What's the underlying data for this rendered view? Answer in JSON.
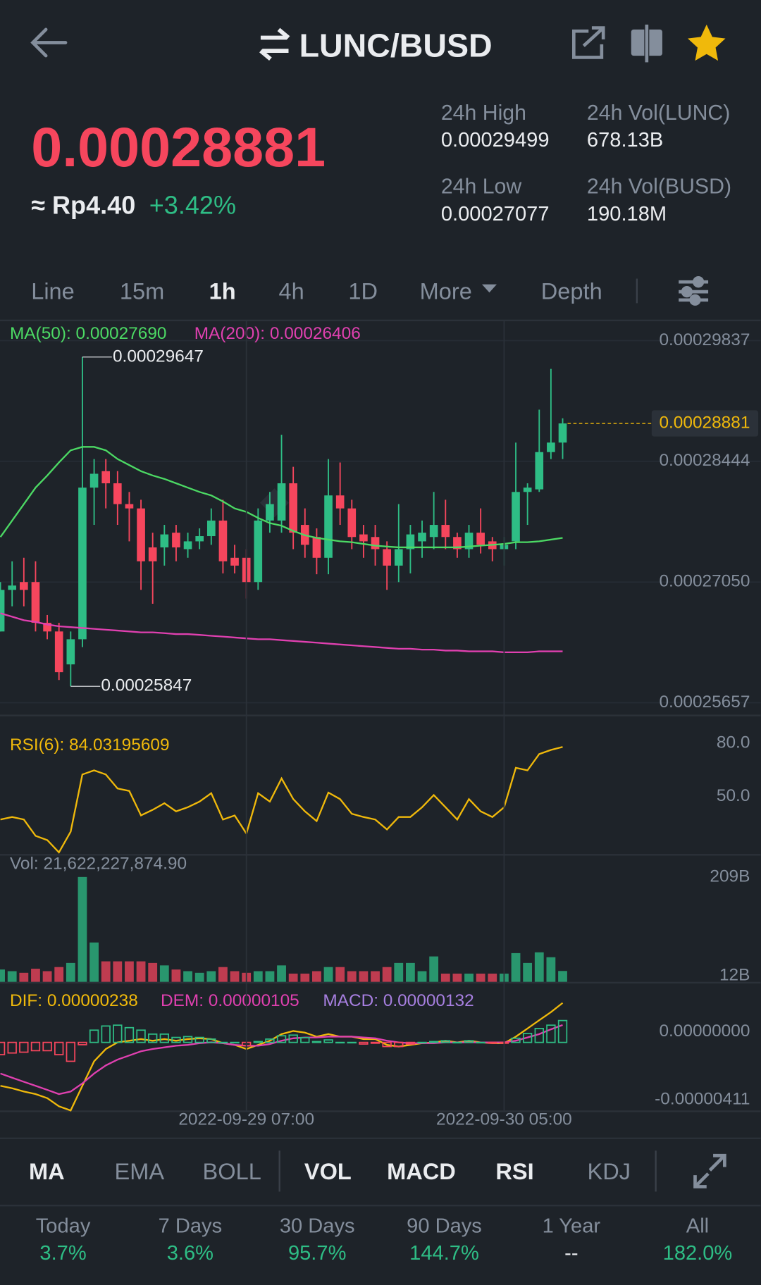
{
  "header": {
    "title": "LUNC/BUSD"
  },
  "price": {
    "last": "0.00028881",
    "fiat": "≈ Rp4.40",
    "change": "+3.42%"
  },
  "stats": [
    {
      "label": "24h High",
      "value": "0.00029499"
    },
    {
      "label": "24h Vol(LUNC)",
      "value": "678.13B"
    },
    {
      "label": "24h Low",
      "value": "0.00027077"
    },
    {
      "label": "24h Vol(BUSD)",
      "value": "190.18M"
    }
  ],
  "intervals": [
    "Line",
    "15m",
    "1h",
    "4h",
    "1D",
    "More",
    "Depth"
  ],
  "indicators": [
    "MA",
    "EMA",
    "BOLL",
    "VOL",
    "MACD",
    "RSI",
    "KDJ"
  ],
  "performance": [
    {
      "label": "Today",
      "value": "3.7%"
    },
    {
      "label": "7 Days",
      "value": "3.6%"
    },
    {
      "label": "30 Days",
      "value": "95.7%"
    },
    {
      "label": "90 Days",
      "value": "144.7%"
    },
    {
      "label": "1 Year",
      "value": "--"
    },
    {
      "label": "All",
      "value": "182.0%"
    }
  ],
  "chart_data": [
    {
      "type": "candlestick",
      "up_color": "#2ebd85",
      "down_color": "#f6465d",
      "grid": true,
      "ylim": [
        0.0002552,
        0.0003006
      ],
      "yticks": [
        0.00029837,
        0.00028444,
        {
          "value": 0.0002705,
          "label": "0.00027050"
        },
        0.00025657
      ],
      "open": [
        0.0002648,
        0.0002696,
        0.0002705,
        0.0002705,
        0.0002658,
        0.0002648,
        0.000261,
        0.0002639,
        0.0002814,
        0.0002833,
        0.0002819,
        0.0002795,
        0.000279,
        0.0002745,
        0.0002745,
        0.0002762,
        0.0002743,
        0.0002752,
        0.0002758,
        0.0002776,
        0.0002733,
        0.0002733,
        0.0002705,
        0.0002776,
        0.0002776,
        0.0002819,
        0.0002771,
        0.0002757,
        0.0002733,
        0.0002805,
        0.000279,
        0.000276,
        0.0002757,
        0.0002743,
        0.0002724,
        0.0002743,
        0.0002752,
        0.0002757,
        0.0002771,
        0.0002757,
        0.0002743,
        0.0002762,
        0.0002752,
        0.0002743,
        0.0002752,
        0.0002809,
        0.0002812,
        0.0002855,
        0.0002866
      ],
      "high": [
        0.0002705,
        0.0002729,
        0.0002733,
        0.0002729,
        0.0002667,
        0.0002658,
        0.0002648,
        0.00029647,
        0.0002847,
        0.0002847,
        0.0002833,
        0.0002809,
        0.00028,
        0.0002762,
        0.0002771,
        0.0002771,
        0.0002762,
        0.0002767,
        0.000279,
        0.00028,
        0.0002748,
        0.0002743,
        0.000279,
        0.0002809,
        0.0002875,
        0.0002838,
        0.000279,
        0.0002767,
        0.0002847,
        0.0002843,
        0.00028,
        0.0002771,
        0.0002771,
        0.0002752,
        0.0002795,
        0.0002771,
        0.0002776,
        0.0002809,
        0.00028,
        0.0002762,
        0.0002771,
        0.000279,
        0.0002757,
        0.0002757,
        0.0002866,
        0.0002819,
        0.0002904,
        0.0002951,
        0.0002894
      ],
      "low": [
        0.0002648,
        0.0002677,
        0.0002677,
        0.0002648,
        0.0002639,
        0.0002592,
        0.00025847,
        0.000263,
        0.0002771,
        0.000279,
        0.0002771,
        0.0002752,
        0.0002696,
        0.000268,
        0.0002724,
        0.0002729,
        0.0002733,
        0.0002743,
        0.0002748,
        0.0002715,
        0.0002715,
        0.0002686,
        0.0002696,
        0.0002762,
        0.0002762,
        0.0002743,
        0.0002733,
        0.0002714,
        0.0002714,
        0.0002771,
        0.0002743,
        0.0002733,
        0.0002724,
        0.0002696,
        0.0002705,
        0.0002715,
        0.0002733,
        0.0002743,
        0.0002743,
        0.0002733,
        0.0002733,
        0.0002738,
        0.0002729,
        0.0002724,
        0.0002743,
        0.0002771,
        0.0002809,
        0.0002847,
        0.0002847
      ],
      "close": [
        0.0002696,
        0.0002701,
        0.0002696,
        0.0002658,
        0.0002648,
        0.0002601,
        0.0002639,
        0.0002814,
        0.000283,
        0.0002819,
        0.0002795,
        0.000279,
        0.0002729,
        0.0002729,
        0.000276,
        0.0002745,
        0.0002752,
        0.0002758,
        0.0002776,
        0.0002729,
        0.0002724,
        0.0002705,
        0.0002776,
        0.0002795,
        0.0002819,
        0.0002762,
        0.0002748,
        0.0002733,
        0.0002805,
        0.000279,
        0.0002757,
        0.0002752,
        0.0002743,
        0.0002724,
        0.0002743,
        0.000276,
        0.0002762,
        0.0002771,
        0.0002757,
        0.0002743,
        0.0002762,
        0.0002748,
        0.0002743,
        0.0002748,
        0.0002809,
        0.0002814,
        0.0002855,
        0.0002866,
        0.00028881
      ],
      "series": [
        {
          "name": "MA(50): 0.00027690",
          "color": "#4cd964",
          "values": [
            0.0002757,
            0.0002776,
            0.0002795,
            0.0002814,
            0.0002828,
            0.0002843,
            0.0002857,
            0.0002861,
            0.0002861,
            0.0002857,
            0.0002847,
            0.000284,
            0.0002833,
            0.0002828,
            0.0002824,
            0.0002819,
            0.0002814,
            0.0002809,
            0.0002805,
            0.0002798,
            0.000279,
            0.0002786,
            0.0002779,
            0.0002773,
            0.000277,
            0.0002764,
            0.0002759,
            0.0002756,
            0.0002754,
            0.0002752,
            0.0002751,
            0.0002749,
            0.0002747,
            0.0002746,
            0.0002745,
            0.0002745,
            0.0002745,
            0.0002745,
            0.0002745,
            0.0002745,
            0.0002746,
            0.0002747,
            0.0002748,
            0.0002749,
            0.0002751,
            0.0002751,
            0.0002752,
            0.0002754,
            0.0002756
          ]
        },
        {
          "name": "MA(200): 0.00026406",
          "color": "#e040b0",
          "values": [
            0.0002669,
            0.0002665,
            0.0002661,
            0.0002659,
            0.0002656,
            0.0002654,
            0.0002653,
            0.0002652,
            0.0002651,
            0.000265,
            0.0002649,
            0.0002648,
            0.0002647,
            0.0002647,
            0.0002646,
            0.0002645,
            0.0002645,
            0.0002644,
            0.0002643,
            0.0002642,
            0.0002641,
            0.000264,
            0.0002639,
            0.0002639,
            0.0002638,
            0.0002637,
            0.0002636,
            0.0002635,
            0.0002634,
            0.0002633,
            0.0002632,
            0.0002631,
            0.000263,
            0.0002629,
            0.0002628,
            0.0002628,
            0.0002627,
            0.0002627,
            0.0002626,
            0.0002626,
            0.0002625,
            0.0002625,
            0.0002625,
            0.0002624,
            0.0002624,
            0.0002624,
            0.0002625,
            0.0002625,
            0.0002625
          ]
        }
      ],
      "max_label": 0.00029647,
      "min_label": 0.00025847,
      "last_price": 0.00028881,
      "last_color": "#f0b90b"
    },
    {
      "type": "line",
      "ylim": [
        23.7,
        100.8
      ],
      "yticks": [
        {
          "value": 80,
          "label": "80.0"
        },
        {
          "value": 50,
          "label": "50.0"
        }
      ],
      "series": [
        {
          "name": "RSI(6): 84.03195609",
          "color": "#f0b90b",
          "values": [
            43.1,
            44.5,
            43.1,
            33.9,
            31.5,
            24.6,
            36.2,
            68.5,
            70.8,
            68.5,
            60.6,
            59.2,
            45.4,
            48.6,
            52.3,
            47.7,
            50,
            53.2,
            57.9,
            43.1,
            45.4,
            35.2,
            57.9,
            53.2,
            66.2,
            54.6,
            47.7,
            42.2,
            58.3,
            54.6,
            46.3,
            44.5,
            43.1,
            37.5,
            44.5,
            44.5,
            50,
            56.9,
            50,
            43.1,
            54.6,
            47.7,
            44.5,
            50,
            72.2,
            70.8,
            80,
            82.3,
            84.0
          ]
        }
      ]
    },
    {
      "type": "bar",
      "title": "Vol: 21,622,227,874.90",
      "ylim": [
        0,
        250
      ],
      "yticks": [
        {
          "value": 209,
          "label": "209B"
        },
        {
          "value": 12,
          "label": "12B"
        }
      ],
      "values": [
        24.5,
        21.2,
        18,
        26.1,
        21.2,
        29.4,
        37.6,
        209,
        78.4,
        40.8,
        40.8,
        40.8,
        40.8,
        37.6,
        32.7,
        24.5,
        21.2,
        18,
        21.2,
        29.4,
        21.2,
        18,
        21.2,
        21.2,
        32.7,
        16.3,
        16.3,
        21.2,
        29.4,
        29.4,
        21.2,
        21.2,
        21.2,
        29.4,
        37.6,
        37.6,
        21.2,
        50.6,
        16.3,
        16.3,
        16.3,
        16.3,
        16.3,
        16.3,
        57.2,
        37.6,
        58.8,
        49,
        21.6
      ]
    },
    {
      "type": "macd",
      "ylim": [
        -4.21e-06,
        3.56e-06
      ],
      "yticks": [
        {
          "value": 0,
          "label": "0.00000000"
        },
        -4.11e-06
      ],
      "categories": [
        null,
        null,
        null,
        null,
        null,
        null,
        null,
        null,
        null,
        null,
        null,
        null,
        null,
        null,
        null,
        null,
        null,
        null,
        null,
        null,
        null,
        "2022-09-29 07:00",
        null,
        null,
        null,
        null,
        null,
        null,
        null,
        null,
        null,
        null,
        null,
        null,
        null,
        null,
        null,
        null,
        null,
        null,
        null,
        null,
        null,
        "2022-09-30 05:00",
        null,
        null,
        null,
        null,
        null
      ],
      "series": [
        {
          "name": "DIF: 0.00000238",
          "color": "#f0b90b",
          "values": [
            -2.62e-06,
            -2.77e-06,
            -2.97e-06,
            -3.12e-06,
            -3.37e-06,
            -3.86e-06,
            -4.11e-06,
            -2.62e-06,
            -1.14e-06,
            -4e-07,
            0,
            1e-07,
            2e-07,
            1e-07,
            2e-07,
            1e-07,
            2e-07,
            2.5e-07,
            2e-07,
            -5e-08,
            -1.5e-07,
            -4e-07,
            -1.5e-07,
            1e-07,
            5e-07,
            6.9e-07,
            5.9e-07,
            3.5e-07,
            5e-07,
            3.5e-07,
            3.5e-07,
            2e-07,
            2e-07,
            -1.5e-07,
            -2.5e-07,
            -1.5e-07,
            -5e-08,
            0,
            1e-07,
            0,
            1e-07,
            0,
            -5e-08,
            -5e-08,
            3.5e-07,
            8.4e-07,
            1.34e-06,
            1.83e-06,
            2.38e-06
          ]
        },
        {
          "name": "DEM: 0.00000105",
          "color": "#e040b0",
          "values": [
            -1.88e-06,
            -2.13e-06,
            -2.38e-06,
            -2.62e-06,
            -2.87e-06,
            -3.12e-06,
            -2.97e-06,
            -2.48e-06,
            -1.88e-06,
            -1.39e-06,
            -1.04e-06,
            -7.9e-07,
            -5.4e-07,
            -4e-07,
            -3e-07,
            -2e-07,
            -1.5e-07,
            -5e-08,
            0,
            -5e-08,
            -1.5e-07,
            -2e-07,
            -2e-07,
            -1e-07,
            1e-07,
            2.5e-07,
            3e-07,
            3e-07,
            3.5e-07,
            3.5e-07,
            3.5e-07,
            3e-07,
            2.5e-07,
            1e-07,
            0,
            -5e-08,
            -5e-08,
            -5e-08,
            0,
            0,
            0,
            0,
            0,
            0,
            1e-07,
            3e-07,
            5e-07,
            7.9e-07,
            1.05e-06
          ]
        },
        {
          "name": "MACD: 0.00000132",
          "color": "#a77fe0",
          "up_color": "#2ebd85",
          "down_color": "#f6465d",
          "values": [
            -7.4e-07,
            -6.4e-07,
            -5.9e-07,
            -5e-07,
            -5e-07,
            -7.4e-07,
            -1.14e-06,
            -1.4e-07,
            7.4e-07,
            9.9e-07,
            1.04e-06,
            8.9e-07,
            7.4e-07,
            5e-07,
            5e-07,
            3e-07,
            3.5e-07,
            3e-07,
            2e-07,
            0,
            0,
            -2e-07,
            5e-08,
            2e-07,
            4e-07,
            4.4e-07,
            2.9e-07,
            5e-08,
            1.5e-07,
            0,
            0,
            -1e-07,
            -5e-08,
            -2.5e-07,
            -2.5e-07,
            -1e-07,
            0,
            5e-08,
            1e-07,
            0,
            1e-07,
            0,
            -5e-08,
            -5e-08,
            2.5e-07,
            5.4e-07,
            8.4e-07,
            1.04e-06,
            1.32e-06
          ]
        }
      ]
    }
  ]
}
